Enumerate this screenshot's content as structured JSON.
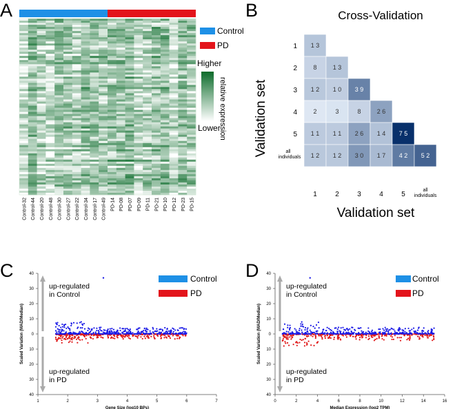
{
  "panels": {
    "a": "A",
    "b": "B",
    "c": "C",
    "d": "D"
  },
  "legend": {
    "control": "Control",
    "pd": "PD",
    "control_color": "#1e90e6",
    "pd_color": "#e3141b"
  },
  "heatmap": {
    "columns": [
      "Control-32",
      "Control-44",
      "Control-20",
      "Control-48",
      "Control-30",
      "Control-27",
      "Control-22",
      "Control-34",
      "Control-17",
      "Control-49",
      "PD-14",
      "PD-08",
      "PD-07",
      "PD-09",
      "PD-11",
      "PD-21",
      "PD-10",
      "PD-12",
      "PD-23",
      "PD-15"
    ],
    "scale_high": "Higher",
    "scale_low": "Lower",
    "scale_label": "relative expression",
    "color_low": "#ffffff",
    "color_high": "#0b6b2a"
  },
  "chart_data": [
    {
      "type": "heatmap",
      "id": "cross-validation",
      "title": "Cross-Validation",
      "xlabel": "Validation set",
      "ylabel": "Validation set",
      "categories": [
        "1",
        "2",
        "3",
        "4",
        "5",
        "all individuals"
      ],
      "tick_labels": {
        "1": "1",
        "2": "2",
        "3": "3",
        "4": "4",
        "5": "5",
        "all_a": "all",
        "all_b": "individuals"
      },
      "matrix": [
        [
          13,
          null,
          null,
          null,
          null,
          null
        ],
        [
          8,
          13,
          null,
          null,
          null,
          null
        ],
        [
          12,
          10,
          39,
          null,
          null,
          null
        ],
        [
          2,
          3,
          8,
          26,
          null,
          null
        ],
        [
          11,
          11,
          26,
          14,
          75,
          null
        ],
        [
          12,
          12,
          30,
          17,
          42,
          52
        ]
      ],
      "value_range": [
        0,
        75
      ]
    },
    {
      "type": "scatter",
      "id": "gene-size",
      "xlabel": "Gene Size (log10 BPs)",
      "ylabel": "Scaled Variation (MAD/Median)",
      "xlim": [
        1,
        7
      ],
      "ylim": [
        -40,
        40
      ],
      "xticks": [
        1,
        2,
        3,
        4,
        5,
        6,
        7
      ],
      "ytick_labels": [
        "40",
        "30",
        "20",
        "10",
        "0",
        "10",
        "20",
        "30",
        "40"
      ],
      "annotations": {
        "up": [
          "up-regulated",
          "in Control"
        ],
        "down": [
          "up-regulated",
          "in PD"
        ]
      },
      "series": [
        {
          "name": "Control",
          "x_range": [
            1.6,
            6.0
          ],
          "y_range": [
            0,
            8
          ],
          "outlier": [
            3.2,
            37
          ]
        },
        {
          "name": "PD",
          "x_range": [
            1.6,
            6.0
          ],
          "y_range": [
            -6,
            0
          ]
        }
      ]
    },
    {
      "type": "scatter",
      "id": "median-expression",
      "xlabel": "Median Expression (log2 TPM)",
      "ylabel": "Scaled Variation (MAD/Median)",
      "xlim": [
        0,
        16
      ],
      "ylim": [
        -40,
        40
      ],
      "xticks": [
        0,
        2,
        4,
        6,
        8,
        10,
        12,
        14,
        16
      ],
      "ytick_labels": [
        "40",
        "30",
        "20",
        "10",
        "0",
        "10",
        "20",
        "30",
        "40"
      ],
      "annotations": {
        "up": [
          "up-regulated",
          "in Control"
        ],
        "down": [
          "up-regulated",
          "in PD"
        ]
      },
      "series": [
        {
          "name": "Control",
          "x_range": [
            0.7,
            15.0
          ],
          "y_range": [
            0,
            8
          ],
          "outlier": [
            3.3,
            37
          ]
        },
        {
          "name": "PD",
          "x_range": [
            0.7,
            15.0
          ],
          "y_range": [
            -8,
            0
          ]
        }
      ]
    }
  ]
}
